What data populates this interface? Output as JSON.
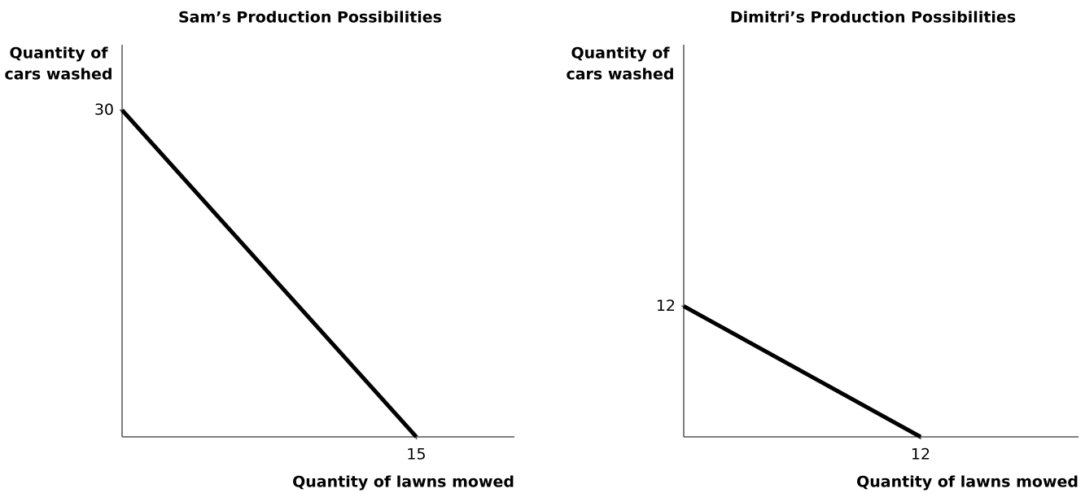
{
  "chart_data": [
    {
      "type": "line",
      "title": "Sam’s Production Possibilities",
      "ylabel": [
        "Quantity of",
        "cars washed"
      ],
      "xlabel": "Quantity of lawns mowed",
      "x": [
        0,
        15
      ],
      "series": [
        {
          "name": "Sam",
          "color": "#000000",
          "values": [
            30,
            0
          ]
        }
      ],
      "xlim": [
        0,
        20
      ],
      "ylim": [
        0,
        36
      ],
      "xticks": [
        15
      ],
      "yticks": [
        30
      ]
    },
    {
      "type": "line",
      "title": "Dimitri’s Production Possibilities",
      "ylabel": [
        "Quantity of",
        "cars washed"
      ],
      "xlabel": "Quantity of lawns mowed",
      "x": [
        0,
        12
      ],
      "series": [
        {
          "name": "Dimitri",
          "color": "#000000",
          "values": [
            12,
            0
          ]
        }
      ],
      "xlim": [
        0,
        20
      ],
      "ylim": [
        0,
        36
      ],
      "xticks": [
        12
      ],
      "yticks": [
        12
      ]
    }
  ]
}
